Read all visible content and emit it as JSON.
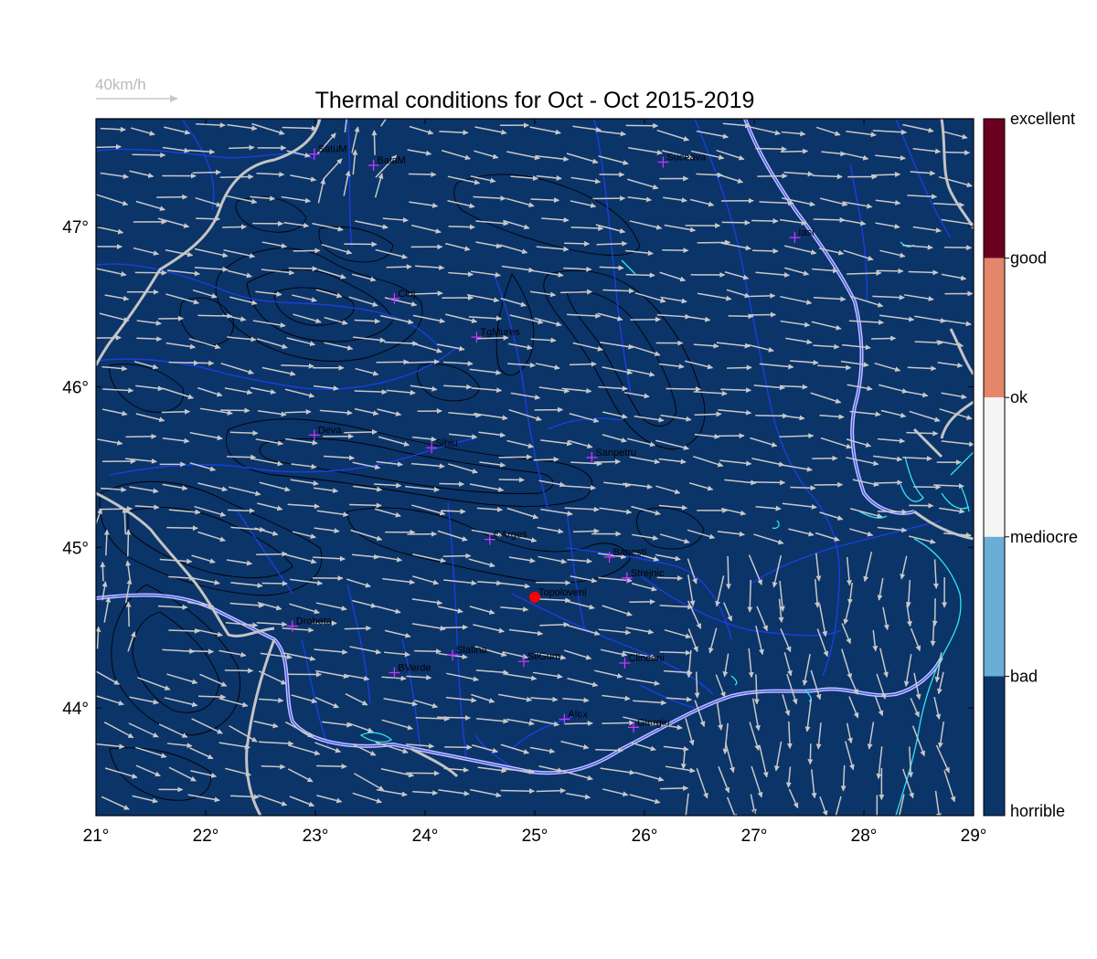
{
  "title": "Thermal conditions for Oct - Oct  2015-2019",
  "wind_scale": {
    "label": "40km/h",
    "speed_kmh": 40
  },
  "map": {
    "lon_range": [
      21,
      29
    ],
    "lat_range": [
      43.33,
      47.67
    ],
    "x_ticks": [
      "21°",
      "22°",
      "23°",
      "24°",
      "25°",
      "26°",
      "27°",
      "28°",
      "29°"
    ],
    "y_ticks": [
      "44°",
      "45°",
      "46°",
      "47°"
    ],
    "background_class": "horrible",
    "background_color": "#0b3469",
    "marker": {
      "name": "Topoloveni",
      "lon": 25.0,
      "lat": 44.69,
      "color": "#ff0000"
    }
  },
  "cities": [
    {
      "name": "SatuM",
      "lon": 22.99,
      "lat": 47.45
    },
    {
      "name": "BaiaM",
      "lon": 23.53,
      "lat": 47.38
    },
    {
      "name": "Suceava",
      "lon": 26.17,
      "lat": 47.4
    },
    {
      "name": "Iasi",
      "lon": 27.37,
      "lat": 46.93
    },
    {
      "name": "Cluj",
      "lon": 23.72,
      "lat": 46.55
    },
    {
      "name": "TgMures",
      "lon": 24.47,
      "lat": 46.31
    },
    {
      "name": "Deva",
      "lon": 22.99,
      "lat": 45.7
    },
    {
      "name": "Sibiu",
      "lon": 24.06,
      "lat": 45.62
    },
    {
      "name": "Sanpetru",
      "lon": 25.52,
      "lat": 45.56
    },
    {
      "name": "CArges",
      "lon": 24.59,
      "lat": 45.05
    },
    {
      "name": "Banesti",
      "lon": 25.68,
      "lat": 44.94
    },
    {
      "name": "Strejnic",
      "lon": 25.84,
      "lat": 44.81
    },
    {
      "name": "Topoloveni",
      "lon": 25.0,
      "lat": 44.69
    },
    {
      "name": "Drobeta",
      "lon": 22.79,
      "lat": 44.51
    },
    {
      "name": "Slatina",
      "lon": 24.25,
      "lat": 44.33
    },
    {
      "name": "SilGum",
      "lon": 24.9,
      "lat": 44.29
    },
    {
      "name": "Clinceni",
      "lon": 25.82,
      "lat": 44.28
    },
    {
      "name": "BVerde",
      "lon": 23.72,
      "lat": 44.22
    },
    {
      "name": "Alex",
      "lon": 25.27,
      "lat": 43.93
    },
    {
      "name": "Giurgiu",
      "lon": 25.9,
      "lat": 43.88
    }
  ],
  "colorbar": {
    "classes": [
      {
        "label": "horrible",
        "color": "#0b3469"
      },
      {
        "label": "bad",
        "color": "#6aaed6"
      },
      {
        "label": "mediocre",
        "color": "#f5f5f5"
      },
      {
        "label": "ok",
        "color": "#e3866a"
      },
      {
        "label": "good",
        "color": "#6b0021"
      },
      {
        "label": "excellent",
        "color": ""
      }
    ],
    "label_order": [
      "horrible",
      "bad",
      "mediocre",
      "ok",
      "good",
      "excellent"
    ]
  },
  "colors": {
    "arrows": "#c8c8c8",
    "rivers": "#1a3fe0",
    "borders": "#c4c4c4",
    "contours": "#000000",
    "lakes": "#2ee6f0",
    "city_markers": "#cc33ff"
  }
}
